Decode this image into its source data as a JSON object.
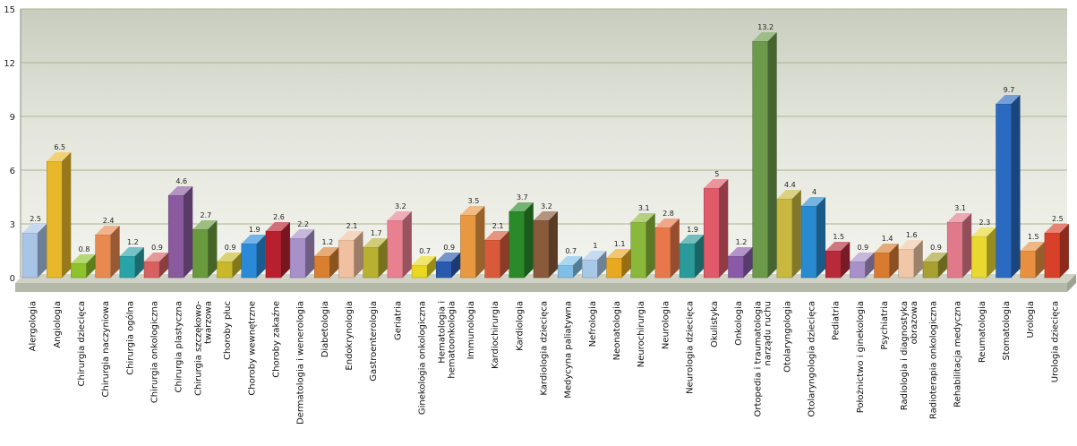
{
  "chart_data": {
    "type": "bar",
    "title": "",
    "xlabel": "",
    "ylabel": "",
    "ylim": [
      0,
      15
    ],
    "yticks": [
      0,
      3,
      6,
      9,
      12,
      15
    ],
    "grid": true,
    "categories": [
      "Alergologia",
      "Angiologia",
      "Chirurgia dziecięca",
      "Chirurgia naczyniowa",
      "Chirurgia ogólna",
      "Chirurgia onkologiczna",
      "Chirurgia plastyczna",
      "Chirurgia szczękowo-twarzowa",
      "Choroby płuc",
      "Choroby wewnętrzne",
      "Choroby zakaźne",
      "Dermatologia i wenerologia",
      "Diabetologia",
      "Endokrynologia",
      "Gastroenterologia",
      "Geriatria",
      "Ginekologia onkologiczna",
      "Hematologia i hematoonkologia",
      "Immunologia",
      "Kardiochirurgia",
      "Kardiologia",
      "Kardiologia dziecięca",
      "Medycyna paliatywna",
      "Nefrologia",
      "Neonatologia",
      "Neurochirurgia",
      "Neurologia",
      "Neurologia dziecięca",
      "Okulistyka",
      "Onkologia",
      "Ortopedia i traumatologia narządu ruchu",
      "Otolaryngologia",
      "Otolaryngologia dziecięca",
      "Pediatria",
      "Położnictwo i ginekologia",
      "Psychiatria",
      "Radiologia i diagnostyka obrazowa",
      "Radioterapia onkologiczna",
      "Rehabilitacja medyczna",
      "Reumatologia",
      "Stomatologia",
      "Urologia",
      "Urologia dziecięca"
    ],
    "category_lines": [
      [
        "Alergologia"
      ],
      [
        "Angiologia"
      ],
      [
        "Chirurgia dziecięca"
      ],
      [
        "Chirurgia naczyniowa"
      ],
      [
        "Chirurgia ogólna"
      ],
      [
        "Chirurgia onkologiczna"
      ],
      [
        "Chirurgia plastyczna"
      ],
      [
        "Chirurgia szczękowo-",
        "twarzowa"
      ],
      [
        "Choroby płuc"
      ],
      [
        "Choroby wewnętrzne"
      ],
      [
        "Choroby zakaźne"
      ],
      [
        "Dermatologia i wenerologia"
      ],
      [
        "Diabetologia"
      ],
      [
        "Endokrynologia"
      ],
      [
        "Gastroenterologia"
      ],
      [
        "Geriatria"
      ],
      [
        "Ginekologia onkologiczna"
      ],
      [
        "Hematologia i",
        "hematoonkologia"
      ],
      [
        "Immunologia"
      ],
      [
        "Kardiochirurgia"
      ],
      [
        "Kardiologia"
      ],
      [
        "Kardiologia dziecięca"
      ],
      [
        "Medycyna paliatywna"
      ],
      [
        "Nefrologia"
      ],
      [
        "Neonatologia"
      ],
      [
        "Neurochirurgia"
      ],
      [
        "Neurologia"
      ],
      [
        "Neurologia dziecięca"
      ],
      [
        "Okulistyka"
      ],
      [
        "Onkologia"
      ],
      [
        "Ortopedia i traumatologia",
        "narządu ruchu"
      ],
      [
        "Otolaryngologia"
      ],
      [
        "Otolaryngologia dziecięca"
      ],
      [
        "Pediatria"
      ],
      [
        "Położnictwo i ginekologia"
      ],
      [
        "Psychiatria"
      ],
      [
        "Radiologia i diagnostyka",
        "obrazowa"
      ],
      [
        "Radioterapia onkologiczna"
      ],
      [
        "Rehabilitacja medyczna"
      ],
      [
        "Reumatologia"
      ],
      [
        "Stomatologia"
      ],
      [
        "Urologia"
      ],
      [
        "Urologia dziecięca"
      ]
    ],
    "values": [
      2.5,
      6.5,
      0.8,
      2.4,
      1.2,
      0.9,
      4.6,
      2.7,
      0.9,
      1.9,
      2.6,
      2.2,
      1.2,
      2.1,
      1.7,
      3.2,
      0.7,
      0.9,
      3.5,
      2.1,
      3.7,
      3.2,
      0.7,
      1,
      1.1,
      3.1,
      2.8,
      1.9,
      5,
      1.2,
      13.2,
      4.4,
      4,
      1.5,
      0.9,
      1.4,
      1.6,
      0.9,
      3.1,
      2.3,
      9.7,
      1.5,
      2.5
    ],
    "value_labels": [
      "2.5",
      "6.5",
      "0.8",
      "2.4",
      "1.2",
      "0.9",
      "4.6",
      "2.7",
      "0.9",
      "1.9",
      "2.6",
      "2.2",
      "1.2",
      "2.1",
      "1.7",
      "3.2",
      "0.7",
      "0.9",
      "3.5",
      "2.1",
      "3.7",
      "3.2",
      "0.7",
      "1",
      "1.1",
      "3.1",
      "2.8",
      "1.9",
      "5",
      "1.2",
      "13.2",
      "4.4",
      "4",
      "1.5",
      "0.9",
      "1.4",
      "1.6",
      "0.9",
      "3.1",
      "2.3",
      "9.7",
      "1.5",
      "2.5"
    ],
    "colors": [
      "#a8c4e6",
      "#e8b82a",
      "#8dc22a",
      "#e88a50",
      "#2aa3a8",
      "#d86060",
      "#8a5a9e",
      "#6a9a3e",
      "#c8b82a",
      "#2a8ad8",
      "#b82030",
      "#a890c8",
      "#d88030",
      "#f0c0a0",
      "#b8b030",
      "#e88090",
      "#e8d820",
      "#2a5ab0",
      "#e89840",
      "#d85a3a",
      "#2a8a2a",
      "#8a5a3a",
      "#80c0e8",
      "#a8c8e8",
      "#e8a820",
      "#8ab83a",
      "#e8784a",
      "#2a9a9a",
      "#e05a6a",
      "#8a5aa8",
      "#6a9a4a",
      "#c8b840",
      "#2a8ad0",
      "#b82a3a",
      "#a890c8",
      "#d87a30",
      "#f0c8a8",
      "#a8a030",
      "#e07a8a",
      "#e8d830",
      "#2a6ac0",
      "#e89040",
      "#d8402a"
    ]
  }
}
